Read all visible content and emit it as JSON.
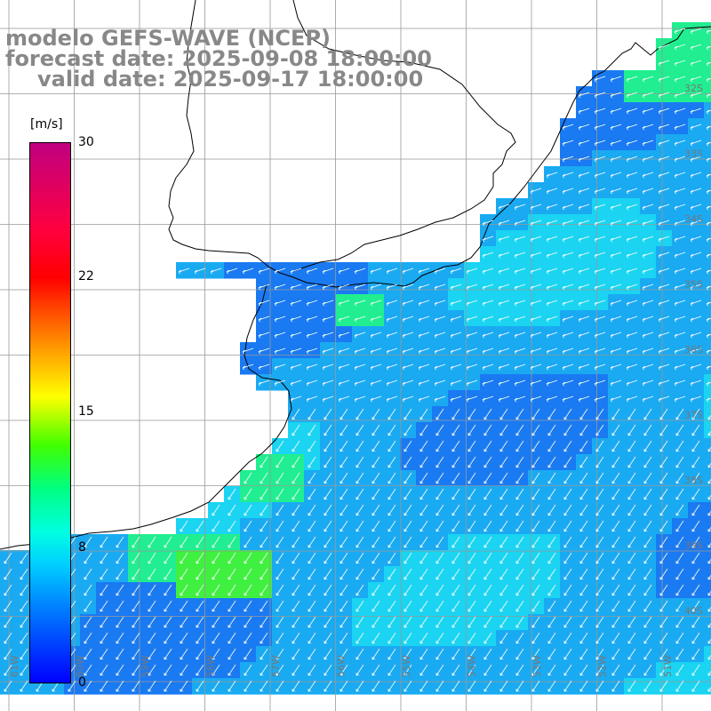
{
  "title": {
    "line1": "modelo GEFS-WAVE (NCEP)",
    "line2": "forecast date: 2025-09-08 18:00:00",
    "line3": "valid date: 2025-09-17 18:00:00"
  },
  "colorbar": {
    "unit": "[m/s]",
    "ticks": [
      "30",
      "22",
      "15",
      "8",
      "0"
    ],
    "tick_values": [
      30,
      22,
      15,
      8,
      0
    ]
  },
  "lat_labels": [
    "32S",
    "33S",
    "34S",
    "35S",
    "36S",
    "37S",
    "38S",
    "39S",
    "40S"
  ],
  "lon_labels": [
    "61W",
    "60W",
    "59W",
    "58W",
    "57W",
    "56W",
    "55W",
    "54W",
    "53W",
    "52W",
    "51W"
  ],
  "colors": {
    "ocean_mid": "#1aaaf2",
    "ocean_light": "#1ad4f2",
    "ocean_dark": "#1a7af2",
    "ocean_green": "#20ee90",
    "ocean_brightgreen": "#40f040",
    "grid": "#999999",
    "coast": "#000000",
    "arrow": "#ffffff"
  },
  "wind_direction": "from east / northeast"
}
